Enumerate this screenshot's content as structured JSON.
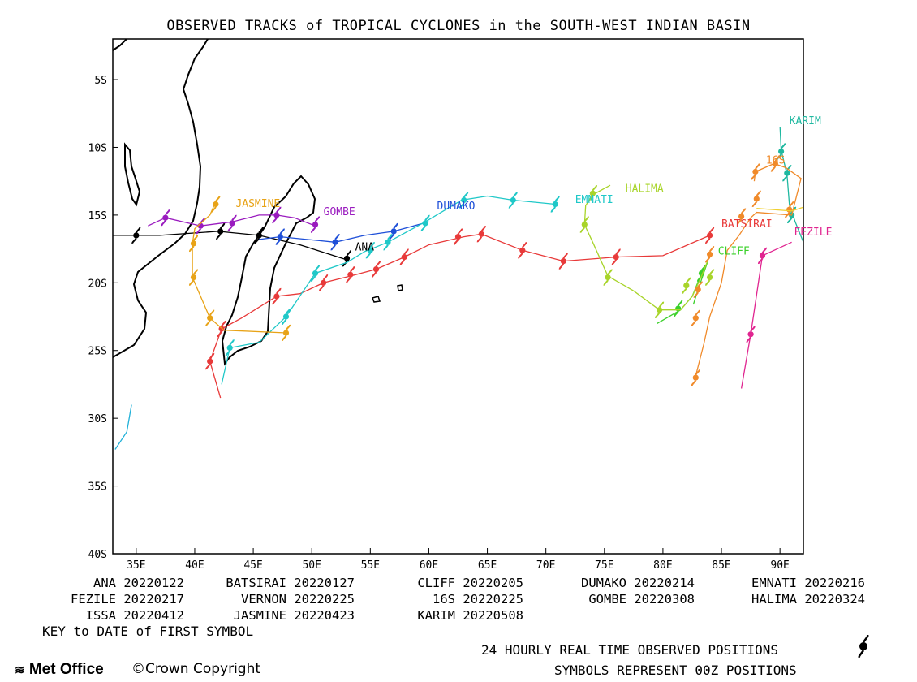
{
  "title": "OBSERVED TRACKS of TROPICAL CYCLONES in the SOUTH-WEST INDIAN BASIN",
  "axes": {
    "x_ticks": [
      "35E",
      "40E",
      "45E",
      "50E",
      "55E",
      "60E",
      "65E",
      "70E",
      "75E",
      "80E",
      "85E",
      "90E"
    ],
    "x_values": [
      35,
      40,
      45,
      50,
      55,
      60,
      65,
      70,
      75,
      80,
      85,
      90
    ],
    "y_ticks": [
      "5S",
      "10S",
      "15S",
      "20S",
      "25S",
      "30S",
      "35S",
      "40S"
    ],
    "y_values": [
      5,
      10,
      15,
      20,
      25,
      30,
      35,
      40
    ],
    "lon_range": [
      33,
      92
    ],
    "lat_range": [
      2,
      40
    ]
  },
  "storm_labels": [
    {
      "name": "JASMINE",
      "lon": 43.5,
      "lat": 14.4,
      "color": "#e8a317"
    },
    {
      "name": "GOMBE",
      "lon": 51.0,
      "lat": 15.0,
      "color": "#9a1bbf"
    },
    {
      "name": "ANA",
      "lon": 53.7,
      "lat": 17.6,
      "color": "#000000"
    },
    {
      "name": "DUMAKO",
      "lon": 60.7,
      "lat": 14.6,
      "color": "#1e4fd8"
    },
    {
      "name": "EMNATI",
      "lon": 72.5,
      "lat": 14.1,
      "color": "#1fc8c8"
    },
    {
      "name": "HALIMA",
      "lon": 76.8,
      "lat": 13.3,
      "color": "#a8d42a"
    },
    {
      "name": "KARIM",
      "lon": 90.8,
      "lat": 8.3,
      "color": "#1fb8a0"
    },
    {
      "name": "16S",
      "lon": 88.8,
      "lat": 11.2,
      "color": "#f08a2a"
    },
    {
      "name": "BATSIRAI",
      "lon": 85.0,
      "lat": 15.9,
      "color": "#e83a3a"
    },
    {
      "name": "FEZILE",
      "lon": 91.2,
      "lat": 16.5,
      "color": "#e02590"
    },
    {
      "name": "CLIFF",
      "lon": 84.7,
      "lat": 17.9,
      "color": "#3ad02a"
    }
  ],
  "tracks": [
    {
      "name": "ANA",
      "color": "#000000",
      "points": [
        [
          53.0,
          18.3
        ],
        [
          49.0,
          17.2
        ],
        [
          47.0,
          16.8
        ],
        [
          45.5,
          16.5
        ],
        [
          42.0,
          16.2
        ],
        [
          37.0,
          16.5
        ],
        [
          33.0,
          16.5
        ]
      ],
      "symbols": [
        [
          53.0,
          18.2
        ],
        [
          45.5,
          16.5
        ],
        [
          42.2,
          16.2
        ],
        [
          35.0,
          16.5
        ]
      ]
    },
    {
      "name": "BATSIRAI",
      "color": "#e83a3a",
      "points": [
        [
          42.2,
          28.5
        ],
        [
          41.3,
          25.8
        ],
        [
          42.3,
          23.4
        ],
        [
          44.0,
          22.6
        ],
        [
          47.0,
          21.0
        ],
        [
          49.0,
          20.8
        ],
        [
          51.0,
          20.0
        ],
        [
          53.3,
          19.5
        ],
        [
          55.5,
          19.0
        ],
        [
          57.9,
          18.1
        ],
        [
          60.0,
          17.2
        ],
        [
          63.0,
          16.6
        ],
        [
          64.5,
          16.4
        ],
        [
          68.0,
          17.6
        ],
        [
          71.5,
          18.4
        ],
        [
          76.0,
          18.1
        ],
        [
          80.0,
          18.0
        ],
        [
          84.0,
          16.5
        ]
      ],
      "symbols": [
        [
          41.3,
          25.8
        ],
        [
          42.3,
          23.4
        ],
        [
          47.0,
          21.0
        ],
        [
          51.0,
          20.0
        ],
        [
          53.3,
          19.4
        ],
        [
          55.5,
          19.0
        ],
        [
          57.9,
          18.1
        ],
        [
          62.5,
          16.6
        ],
        [
          64.5,
          16.4
        ],
        [
          68.0,
          17.6
        ],
        [
          71.5,
          18.4
        ],
        [
          76.0,
          18.1
        ],
        [
          84.0,
          16.5
        ]
      ]
    },
    {
      "name": "CLIFF",
      "color": "#3ad02a",
      "points": [
        [
          79.5,
          23.0
        ],
        [
          81.5,
          22.0
        ],
        [
          82.5,
          21.0
        ],
        [
          83.3,
          19.3
        ],
        [
          83.8,
          18.5
        ],
        [
          83.0,
          20.5
        ],
        [
          82.6,
          21.6
        ]
      ],
      "symbols": [
        [
          81.3,
          21.9
        ],
        [
          83.3,
          19.3
        ]
      ]
    },
    {
      "name": "DUMAKO",
      "color": "#1e4fd8",
      "points": [
        [
          45.5,
          16.8
        ],
        [
          47.3,
          16.6
        ],
        [
          52.0,
          17.0
        ],
        [
          54.5,
          16.5
        ],
        [
          57.0,
          16.2
        ],
        [
          60.0,
          15.5
        ]
      ],
      "symbols": [
        [
          47.3,
          16.6
        ],
        [
          52.0,
          17.0
        ],
        [
          57.0,
          16.2
        ]
      ]
    },
    {
      "name": "EMNATI",
      "color": "#1fc8c8",
      "points": [
        [
          42.3,
          27.5
        ],
        [
          43.0,
          24.8
        ],
        [
          45.5,
          24.4
        ],
        [
          47.8,
          22.5
        ],
        [
          50.3,
          19.3
        ],
        [
          53.0,
          18.5
        ],
        [
          54.5,
          17.7
        ],
        [
          56.5,
          17.0
        ],
        [
          59.7,
          15.5
        ],
        [
          62.8,
          13.9
        ],
        [
          65.0,
          13.6
        ],
        [
          67.2,
          13.9
        ],
        [
          70.8,
          14.2
        ]
      ],
      "symbols": [
        [
          43.0,
          24.8
        ],
        [
          47.8,
          22.5
        ],
        [
          50.3,
          19.3
        ],
        [
          55.0,
          17.6
        ],
        [
          56.5,
          17.0
        ],
        [
          59.7,
          15.6
        ],
        [
          63.0,
          13.9
        ],
        [
          67.2,
          13.9
        ],
        [
          70.8,
          14.2
        ]
      ]
    },
    {
      "name": "FEZILE",
      "color": "#e02590",
      "points": [
        [
          86.7,
          27.8
        ],
        [
          87.5,
          23.8
        ],
        [
          88.5,
          18.0
        ],
        [
          91.0,
          17.0
        ]
      ],
      "symbols": [
        [
          87.5,
          23.8
        ],
        [
          88.5,
          18.0
        ]
      ]
    },
    {
      "name": "GOMBE",
      "color": "#9a1bbf",
      "points": [
        [
          36.0,
          15.8
        ],
        [
          37.5,
          15.2
        ],
        [
          40.5,
          15.8
        ],
        [
          43.2,
          15.5
        ],
        [
          45.5,
          15.0
        ],
        [
          47.0,
          15.0
        ],
        [
          48.5,
          15.2
        ],
        [
          50.3,
          15.8
        ]
      ],
      "symbols": [
        [
          37.5,
          15.2
        ],
        [
          40.5,
          15.8
        ],
        [
          43.2,
          15.6
        ],
        [
          47.0,
          15.0
        ],
        [
          50.3,
          15.7
        ]
      ]
    },
    {
      "name": "HALIMA",
      "color": "#a8d42a",
      "points": [
        [
          75.5,
          12.8
        ],
        [
          74.0,
          13.5
        ],
        [
          73.4,
          14.3
        ],
        [
          73.3,
          15.7
        ],
        [
          74.0,
          17.0
        ],
        [
          75.3,
          19.5
        ],
        [
          77.5,
          20.6
        ],
        [
          79.7,
          22.0
        ],
        [
          81.5,
          22.0
        ],
        [
          82.5,
          21.0
        ],
        [
          83.3,
          19.5
        ],
        [
          84.0,
          18.0
        ]
      ],
      "symbols": [
        [
          74.0,
          13.4
        ],
        [
          73.3,
          15.7
        ],
        [
          75.3,
          19.6
        ],
        [
          79.7,
          22.0
        ],
        [
          82.0,
          20.2
        ],
        [
          84.0,
          19.6
        ]
      ]
    },
    {
      "name": "JASMINE",
      "color": "#e8a317",
      "points": [
        [
          41.8,
          14.0
        ],
        [
          41.3,
          15.0
        ],
        [
          40.0,
          16.0
        ],
        [
          39.8,
          17.1
        ],
        [
          39.8,
          19.6
        ],
        [
          41.3,
          22.6
        ],
        [
          42.5,
          23.5
        ],
        [
          47.8,
          23.7
        ]
      ],
      "symbols": [
        [
          41.8,
          14.2
        ],
        [
          39.9,
          17.1
        ],
        [
          39.9,
          19.6
        ],
        [
          41.3,
          22.6
        ],
        [
          47.8,
          23.7
        ]
      ]
    },
    {
      "name": "KARIM",
      "color": "#1fb8a0",
      "points": [
        [
          90.0,
          8.5
        ],
        [
          90.1,
          10.2
        ],
        [
          90.6,
          12.0
        ],
        [
          90.8,
          14.2
        ],
        [
          91.3,
          15.5
        ],
        [
          92.0,
          17.0
        ],
        [
          93.0,
          20.0
        ]
      ],
      "symbols": [
        [
          90.1,
          10.3
        ],
        [
          90.6,
          11.9
        ],
        [
          91.0,
          15.0
        ]
      ]
    },
    {
      "name": "16S",
      "color": "#f08a2a",
      "points": [
        [
          87.8,
          12.5
        ],
        [
          87.9,
          11.8
        ],
        [
          89.5,
          11.2
        ],
        [
          90.5,
          11.5
        ],
        [
          91.8,
          12.3
        ],
        [
          91.0,
          15.0
        ],
        [
          88.0,
          14.8
        ],
        [
          87.5,
          15.2
        ],
        [
          86.5,
          16.5
        ],
        [
          85.5,
          17.6
        ],
        [
          85.0,
          20.0
        ],
        [
          84.0,
          22.5
        ],
        [
          83.5,
          24.5
        ],
        [
          82.7,
          27.2
        ]
      ],
      "symbols": [
        [
          87.9,
          11.8
        ],
        [
          89.6,
          11.2
        ],
        [
          90.8,
          14.6
        ],
        [
          88.0,
          13.8
        ],
        [
          86.7,
          15.1
        ],
        [
          84.0,
          17.9
        ],
        [
          83.0,
          20.5
        ],
        [
          82.8,
          22.6
        ],
        [
          82.8,
          27.0
        ]
      ]
    },
    {
      "name": "ISSA",
      "color": "#1fb0d8",
      "points": [
        [
          33.2,
          32.3
        ],
        [
          34.2,
          31.0
        ],
        [
          34.6,
          29.0
        ]
      ],
      "symbols": []
    },
    {
      "name": "VERNON",
      "color": "#f0d030",
      "points": [
        [
          88.0,
          14.5
        ],
        [
          91.0,
          14.7
        ],
        [
          93.5,
          14.0
        ],
        [
          96.0,
          13.0
        ]
      ],
      "symbols": []
    }
  ],
  "key": [
    [
      "ANA",
      "20220122"
    ],
    [
      "BATSIRAI",
      "20220127"
    ],
    [
      "CLIFF",
      "20220205"
    ],
    [
      "DUMAKO",
      "20220214"
    ],
    [
      "EMNATI",
      "20220216"
    ],
    [
      "FEZILE",
      "20220217"
    ],
    [
      "VERNON",
      "20220225"
    ],
    [
      "16S",
      "20220225"
    ],
    [
      "GOMBE",
      "20220308"
    ],
    [
      "HALIMA",
      "20220324"
    ],
    [
      "ISSA",
      "20220412"
    ],
    [
      "JASMINE",
      "20220423"
    ],
    [
      "KARIM",
      "20220508"
    ]
  ],
  "key_title": "KEY to DATE of FIRST SYMBOL",
  "footnote1": "24 HOURLY REAL TIME OBSERVED POSITIONS",
  "footnote2": "SYMBOLS REPRESENT 00Z POSITIONS",
  "logo_text": "Met Office",
  "copyright": "©Crown Copyright"
}
